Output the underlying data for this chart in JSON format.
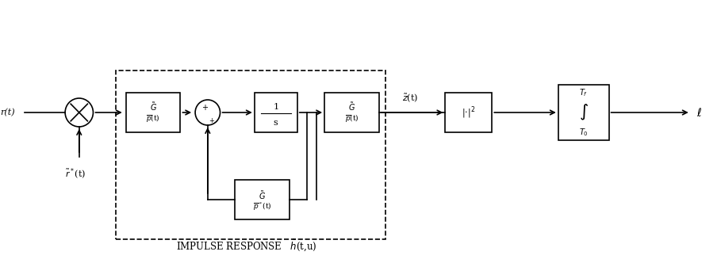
{
  "bg_color": "#ffffff",
  "line_color": "#000000",
  "fig_width": 9.09,
  "fig_height": 3.32,
  "dpi": 100,
  "title": "IMPULSE RESPONSE  $\\tilde{h}$(t,u)",
  "input_label": "r(t)",
  "input_label2": "$\\tilde{r}$*(t)",
  "block1_label": "$\\tilde{G}_p$(t)",
  "block2_label": "1/s",
  "block3_label": "$\\tilde{G}_p$(t)",
  "block4_label": "$\\tilde{G}_p^*$(t)",
  "block5_label": "|·|²",
  "block6_label_top": "$T_f$",
  "block6_label_mid": "∫",
  "block6_label_bot": "$T_0$",
  "output_label": "ℓ",
  "z_label": "$\\tilde{z}$(t)",
  "sum_label": "+"
}
